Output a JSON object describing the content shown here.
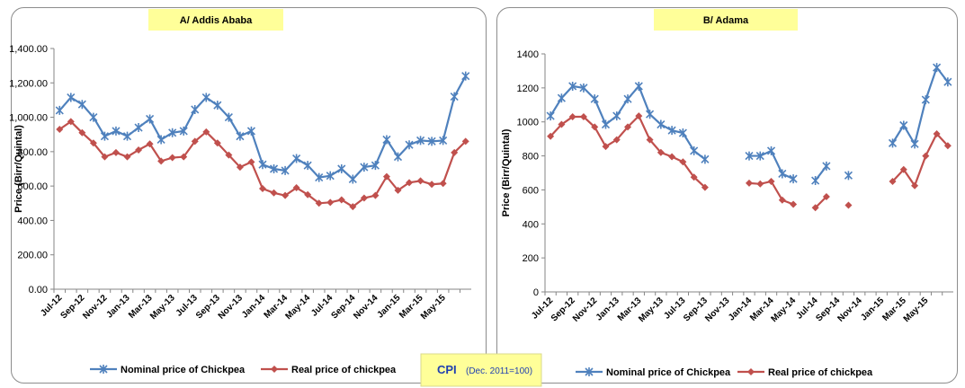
{
  "chart_data": [
    {
      "type": "line",
      "title": "A/ Addis Ababa",
      "y_label": "Price (Birr/Quintal)",
      "categories": [
        "Jul-12",
        null,
        "Sep-12",
        null,
        "Nov-12",
        null,
        "Jan-13",
        null,
        "Mar-13",
        null,
        "May-13",
        null,
        "Jul-13",
        null,
        "Sep-13",
        null,
        "Nov-13",
        null,
        "Jan-14",
        null,
        "Mar-14",
        null,
        "May-14",
        null,
        "Jul-14",
        null,
        "Sep-14",
        null,
        "Nov-14",
        null,
        "Jan-15",
        null,
        "Mar-15",
        null,
        "May-15",
        null,
        null
      ],
      "series": [
        {
          "name": "Nominal price of Chickpea",
          "color": "#4f81bd",
          "marker": "star",
          "values": [
            1040,
            1115,
            1075,
            1000,
            890,
            920,
            890,
            940,
            990,
            870,
            910,
            920,
            1045,
            1115,
            1070,
            1000,
            890,
            920,
            725,
            700,
            690,
            760,
            720,
            650,
            660,
            700,
            640,
            710,
            720,
            870,
            770,
            840,
            865,
            860,
            865,
            1120,
            1240
          ]
        },
        {
          "name": "Real price of chickpea",
          "color": "#c0504d",
          "marker": "diamond",
          "values": [
            930,
            975,
            910,
            850,
            770,
            795,
            770,
            810,
            845,
            745,
            765,
            770,
            860,
            915,
            850,
            780,
            710,
            740,
            585,
            560,
            545,
            590,
            550,
            500,
            505,
            520,
            480,
            530,
            545,
            655,
            575,
            620,
            630,
            610,
            615,
            795,
            860
          ]
        }
      ],
      "ylim": [
        0,
        1400
      ],
      "yticks": [
        {
          "value": 0,
          "label": "0.00"
        },
        {
          "value": 200,
          "label": "200.00"
        },
        {
          "value": 400,
          "label": "400.00"
        },
        {
          "value": 600,
          "label": "600.00"
        },
        {
          "value": 800,
          "label": "800.00"
        },
        {
          "value": 1000,
          "label": "1,000.00"
        },
        {
          "value": 1200,
          "label": "1,200.00"
        },
        {
          "value": 1400,
          "label": "1,400.00"
        }
      ]
    },
    {
      "type": "line",
      "title": "B/ Adama",
      "y_label": "Price (Birr/Quintal)",
      "categories": [
        "Jul-12",
        null,
        "Sep-12",
        null,
        "Nov-12",
        null,
        "Jan-13",
        null,
        "Mar-13",
        null,
        "May-13",
        null,
        "Jul-13",
        null,
        "Sep-13",
        null,
        "Nov-13",
        null,
        "Jan-14",
        null,
        "Mar-14",
        null,
        "May-14",
        null,
        "Jul-14",
        null,
        "Sep-14",
        null,
        "Nov-14",
        null,
        "Jan-15",
        null,
        "Mar-15",
        null,
        "May-15",
        null,
        null
      ],
      "series": [
        {
          "name": "Nominal price of Chickpea",
          "color": "#4f81bd",
          "marker": "star",
          "values": [
            1035,
            1140,
            1210,
            1200,
            1135,
            985,
            1035,
            1135,
            1210,
            1045,
            985,
            950,
            935,
            830,
            780,
            null,
            null,
            null,
            800,
            800,
            830,
            695,
            665,
            null,
            655,
            740,
            null,
            685,
            null,
            null,
            null,
            875,
            980,
            870,
            1130,
            1320,
            1235
          ]
        },
        {
          "name": "Real price of chickpea",
          "color": "#c0504d",
          "marker": "diamond",
          "values": [
            915,
            985,
            1030,
            1030,
            970,
            855,
            895,
            970,
            1035,
            895,
            820,
            795,
            765,
            675,
            615,
            null,
            null,
            null,
            640,
            635,
            650,
            540,
            515,
            null,
            495,
            560,
            null,
            510,
            null,
            null,
            null,
            650,
            720,
            625,
            800,
            930,
            860
          ]
        }
      ],
      "ylim": [
        0,
        1400
      ],
      "yticks": [
        0,
        200,
        400,
        600,
        800,
        1000,
        1200,
        1400
      ]
    }
  ],
  "note": {
    "label": "CPI",
    "text": "(Dec. 2011=100)"
  }
}
